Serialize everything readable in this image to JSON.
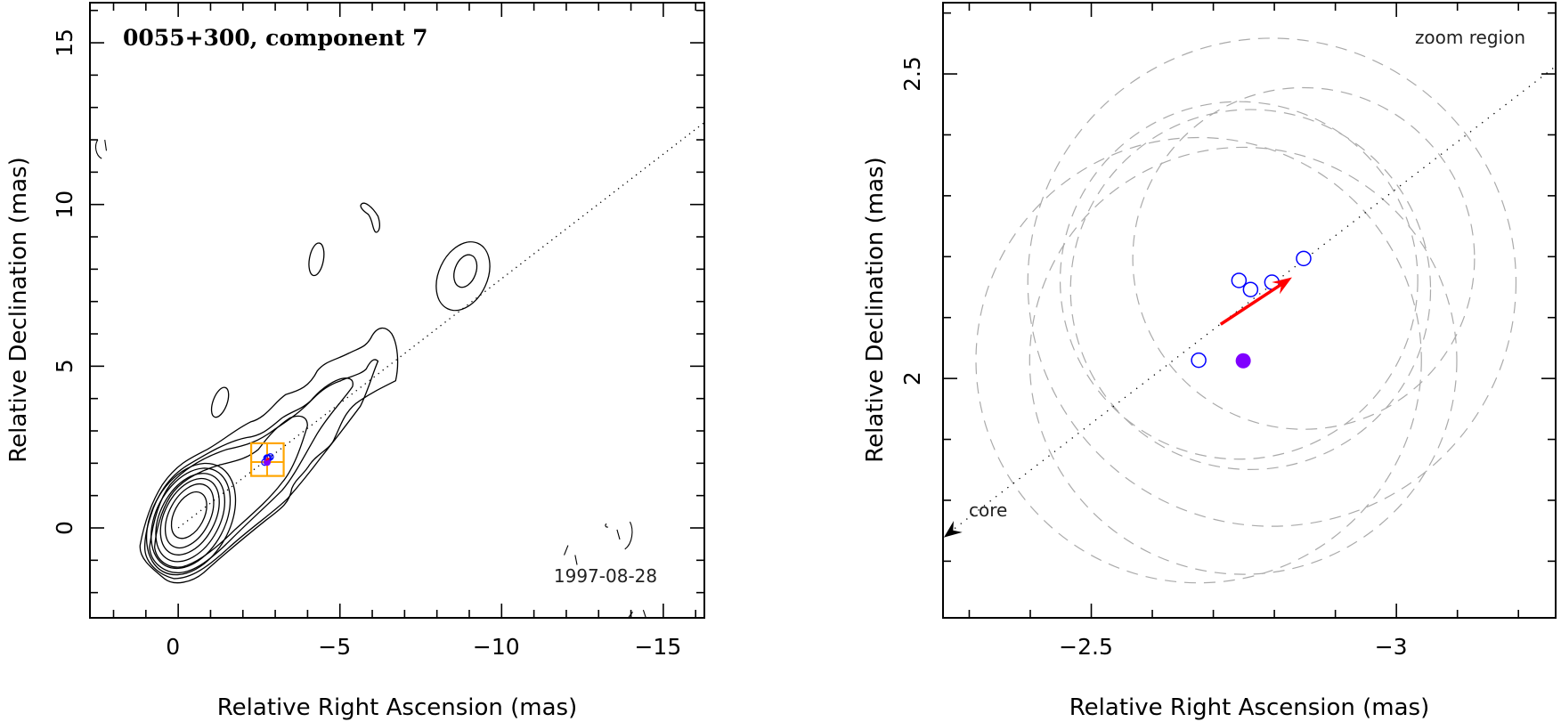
{
  "chart_data": [
    {
      "type": "contour-map",
      "title": "0055+300, component 7",
      "epoch_label": "1997-08-28",
      "xlabel": "Relative Right Ascension (mas)",
      "ylabel": "Relative Declination (mas)",
      "xlim": [
        2.73,
        -16.27
      ],
      "ylim": [
        -2.78,
        16.24
      ],
      "x_ticks": [
        0,
        -5,
        -10,
        -15
      ],
      "x_tick_labels": [
        "0",
        "−5",
        "−10",
        "−15"
      ],
      "y_ticks": [
        0,
        5,
        10,
        15
      ],
      "y_tick_labels": [
        "0",
        "5",
        "10",
        "15"
      ],
      "minor_step": 1,
      "jet_axis_slope": -0.7705,
      "zoom_box": {
        "ra": [
          -2.257,
          -3.261
        ],
        "dec": [
          1.607,
          2.617
        ]
      },
      "crosshair": {
        "ra": -2.749,
        "dec": 2.036
      }
    },
    {
      "type": "scatter",
      "annotation": "zoom region",
      "core_label": "core",
      "xlabel": "Relative Right Ascension (mas)",
      "ylabel": "Relative Declination (mas)",
      "xlim": [
        -2.257,
        -3.261
      ],
      "ylim": [
        1.607,
        2.617
      ],
      "x_ticks": [
        -2.5,
        -3
      ],
      "x_tick_labels": [
        "−2.5",
        "−3"
      ],
      "y_ticks": [
        2,
        2.5
      ],
      "y_tick_labels": [
        "2",
        "2.5"
      ],
      "minor_step": 0.1,
      "jet_axis_slope": -0.7705,
      "components": [
        {
          "ra": -2.676,
          "dec": 2.03,
          "size_radius": 0.365
        },
        {
          "ra": -2.742,
          "dec": 2.161,
          "size_radius": 0.293
        },
        {
          "ra": -2.761,
          "dec": 2.146,
          "size_radius": 0.295
        },
        {
          "ra": -2.796,
          "dec": 2.158,
          "size_radius": 0.4
        },
        {
          "ra": -2.848,
          "dec": 2.197,
          "size_radius": 0.28
        }
      ],
      "current_component": {
        "ra": -2.749,
        "dec": 2.029,
        "size_radius": 0.35
      },
      "velocity_vector": {
        "from": [
          -2.712,
          2.089
        ],
        "to": [
          -2.829,
          2.166
        ]
      }
    }
  ],
  "colors": {
    "component": "#0000ff",
    "current": "#7f00ff",
    "vector": "#ff0000",
    "zoom_box": "#ffa500",
    "size_circle": "#aaaaaa"
  }
}
